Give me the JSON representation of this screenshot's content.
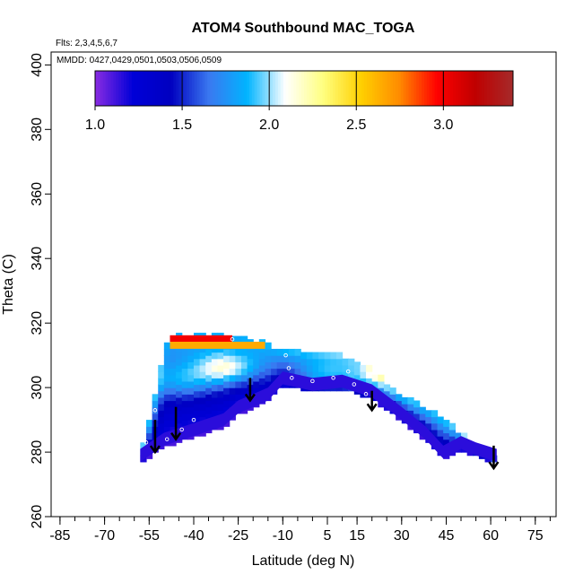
{
  "chart_data": {
    "type": "heatmap",
    "title": "ATOM4 Southbound MAC_TOGA",
    "flights_note": "Flts: 2,3,4,5,6,7",
    "dates_note": "MMDD: 0427,0429,0501,0503,0506,0509",
    "xlabel": "Latitude (deg N)",
    "ylabel": "Theta (C)",
    "xlim": [
      -88,
      82
    ],
    "ylim": [
      260,
      404
    ],
    "x_ticks": [
      -85,
      -70,
      -55,
      -40,
      -25,
      -10,
      5,
      15,
      30,
      45,
      60,
      75
    ],
    "x_minor_step": 5,
    "y_ticks": [
      260,
      280,
      300,
      320,
      340,
      360,
      380,
      400
    ],
    "colorbar": {
      "min": 1.0,
      "max": 3.4,
      "ticks": [
        1.0,
        1.5,
        2.0,
        2.5,
        3.0
      ],
      "tick_labels": [
        "1.0",
        "1.5",
        "2.0",
        "2.5",
        "3.0"
      ],
      "colors": [
        "#8a2be2",
        "#0000d8",
        "#0000c0",
        "#3a78f0",
        "#00b4ff",
        "#ffffff",
        "#ffff80",
        "#ffd000",
        "#ff8c00",
        "#ff0000",
        "#c00000",
        "#a52a2a"
      ]
    },
    "lower_boundary": [
      [
        -58,
        277
      ],
      [
        -50,
        282
      ],
      [
        -40,
        285
      ],
      [
        -30,
        288
      ],
      [
        -25,
        292
      ],
      [
        -15,
        296
      ],
      [
        -10,
        301
      ],
      [
        0,
        299
      ],
      [
        10,
        300
      ],
      [
        20,
        297
      ],
      [
        30,
        290
      ],
      [
        38,
        284
      ],
      [
        44,
        278
      ],
      [
        50,
        281
      ],
      [
        55,
        279
      ],
      [
        62,
        277
      ]
    ],
    "upper_boundary": [
      [
        -58,
        278
      ],
      [
        -54,
        292
      ],
      [
        -50,
        312
      ],
      [
        -48,
        316
      ],
      [
        -25,
        316
      ],
      [
        -10,
        311
      ],
      [
        0,
        310
      ],
      [
        10,
        309
      ],
      [
        15,
        308
      ],
      [
        22,
        303
      ],
      [
        30,
        297
      ],
      [
        40,
        292
      ],
      [
        50,
        285
      ],
      [
        55,
        281
      ],
      [
        62,
        278
      ]
    ],
    "bright_zones": [
      {
        "x": -29,
        "y": 306,
        "value": 2.15
      },
      {
        "x": 4,
        "y": 303,
        "value": 2.0
      },
      {
        "x": 18,
        "y": 302,
        "value": 1.95
      },
      {
        "x": -44,
        "y": 302,
        "value": 1.9
      }
    ],
    "top_band": [
      {
        "lat_start": -48,
        "lat_end": -27,
        "theta": 315,
        "value": 3.0
      },
      {
        "lat_start": -48,
        "lat_end": -16,
        "theta": 313,
        "value": 2.65
      }
    ],
    "arrows": [
      {
        "lat": -53,
        "theta_top": 290,
        "theta_bottom": 280
      },
      {
        "lat": -46,
        "theta_top": 294,
        "theta_bottom": 284
      },
      {
        "lat": -21,
        "theta_top": 303,
        "theta_bottom": 296
      },
      {
        "lat": 20,
        "theta_top": 299,
        "theta_bottom": 293
      },
      {
        "lat": 61,
        "theta_top": 282,
        "theta_bottom": 275
      }
    ],
    "sample_points": [
      [
        -56,
        283
      ],
      [
        -53,
        293
      ],
      [
        -49,
        284
      ],
      [
        -44,
        287
      ],
      [
        -40,
        290
      ],
      [
        -27,
        315
      ],
      [
        -9,
        310
      ],
      [
        -8,
        306
      ],
      [
        -7,
        303
      ],
      [
        0,
        302
      ],
      [
        7,
        303
      ],
      [
        12,
        305
      ],
      [
        14,
        301
      ],
      [
        18,
        298
      ],
      [
        25,
        292
      ],
      [
        32,
        286
      ]
    ]
  }
}
